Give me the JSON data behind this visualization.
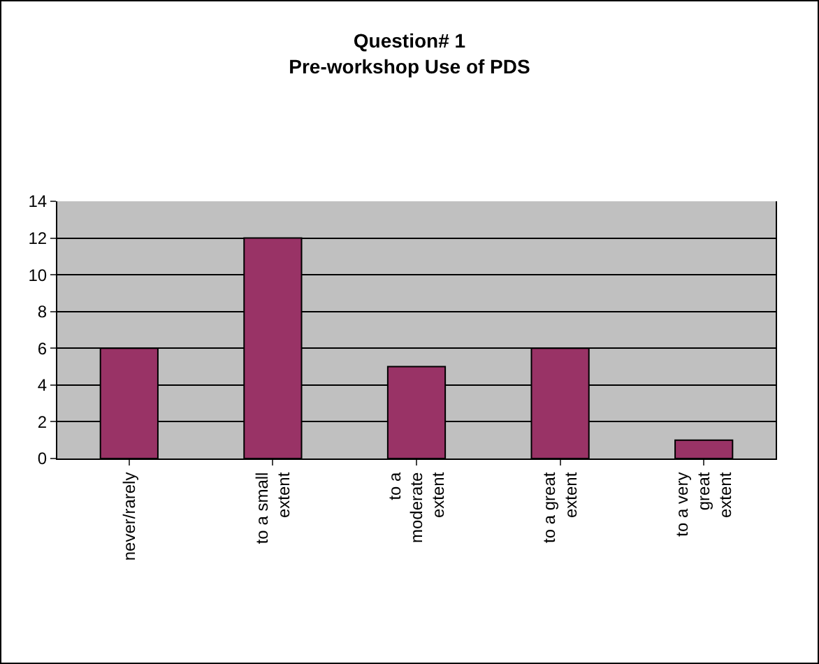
{
  "chart_data": {
    "type": "bar",
    "title": "Question# 1",
    "subtitle": "Pre-workshop Use of PDS",
    "categories": [
      "never/rarely",
      "to a small extent",
      "to a moderate extent",
      "to a great extent",
      "to a very great extent"
    ],
    "values": [
      6,
      12,
      5,
      6,
      1
    ],
    "color": "#993366",
    "ylim": [
      0,
      14
    ],
    "yticks": [
      0,
      2,
      4,
      6,
      8,
      10,
      12,
      14
    ],
    "grid": "y"
  }
}
